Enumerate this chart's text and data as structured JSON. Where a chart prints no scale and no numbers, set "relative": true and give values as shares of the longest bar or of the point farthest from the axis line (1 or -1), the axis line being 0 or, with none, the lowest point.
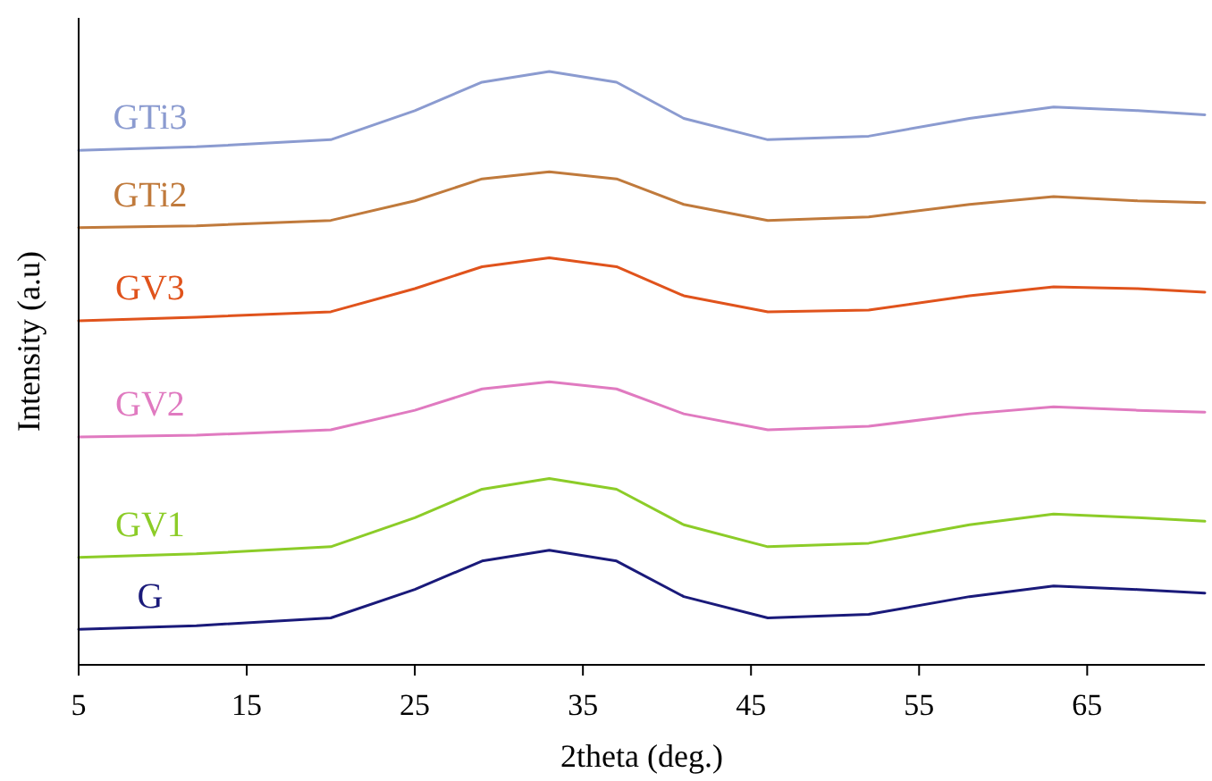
{
  "chart_data": {
    "type": "line",
    "relative": true,
    "xlabel": "2theta (deg.)",
    "ylabel": "Intensity (a.u)",
    "xlim": [
      5,
      72
    ],
    "xticks": [
      5,
      15,
      25,
      35,
      45,
      55,
      65
    ],
    "x": [
      5,
      12,
      20,
      25,
      29,
      33,
      37,
      41,
      46,
      52,
      58,
      63,
      68,
      72
    ],
    "series": [
      {
        "name": "G",
        "color": "#1a1a7a",
        "values": [
          0.06,
          0.066,
          0.079,
          0.127,
          0.175,
          0.193,
          0.175,
          0.115,
          0.079,
          0.085,
          0.115,
          0.133,
          0.127,
          0.121
        ]
      },
      {
        "name": "GV1",
        "color": "#8ccc28",
        "values": [
          0.181,
          0.187,
          0.199,
          0.248,
          0.296,
          0.314,
          0.296,
          0.236,
          0.199,
          0.205,
          0.236,
          0.254,
          0.248,
          0.242
        ]
      },
      {
        "name": "GV2",
        "color": "#e07ac0",
        "values": [
          0.384,
          0.387,
          0.396,
          0.429,
          0.465,
          0.477,
          0.465,
          0.423,
          0.396,
          0.402,
          0.423,
          0.435,
          0.429,
          0.426
        ]
      },
      {
        "name": "GV3",
        "color": "#e0531c",
        "values": [
          0.58,
          0.586,
          0.595,
          0.634,
          0.671,
          0.686,
          0.671,
          0.622,
          0.595,
          0.598,
          0.622,
          0.637,
          0.634,
          0.628
        ]
      },
      {
        "name": "GTi2",
        "color": "#c07a3c",
        "values": [
          0.737,
          0.74,
          0.749,
          0.782,
          0.819,
          0.831,
          0.819,
          0.776,
          0.749,
          0.755,
          0.776,
          0.789,
          0.782,
          0.779
        ]
      },
      {
        "name": "GTi3",
        "color": "#8b9bd0",
        "values": [
          0.867,
          0.873,
          0.885,
          0.934,
          0.982,
          1,
          0.982,
          0.921,
          0.885,
          0.891,
          0.921,
          0.94,
          0.934,
          0.927
        ]
      }
    ]
  }
}
